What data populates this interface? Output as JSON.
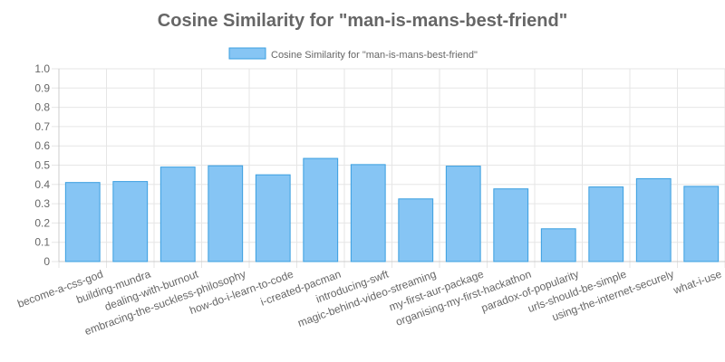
{
  "chart_data": {
    "type": "bar",
    "title": "Cosine Similarity for \"man-is-mans-best-friend\"",
    "xlabel": "",
    "ylabel": "",
    "ylim": [
      0,
      1.0
    ],
    "y_ticks": [
      "0",
      "0.1",
      "0.2",
      "0.3",
      "0.4",
      "0.5",
      "0.6",
      "0.7",
      "0.8",
      "0.9",
      "1.0"
    ],
    "grid": true,
    "legend_position": "top-center",
    "categories": [
      "become-a-css-god",
      "building-mundra",
      "dealing-with-burnout",
      "embracing-the-suckless-philosophy",
      "how-do-i-learn-to-code",
      "i-created-pacman",
      "introducing-swft",
      "magic-behind-video-streaming",
      "my-first-aur-package",
      "organising-my-first-hackathon",
      "paradox-of-popularity",
      "urls-should-be-simple",
      "using-the-internet-securely",
      "what-i-use"
    ],
    "series": [
      {
        "name": "Cosine Similarity for \"man-is-mans-best-friend\"",
        "values": [
          0.41,
          0.415,
          0.49,
          0.497,
          0.45,
          0.535,
          0.503,
          0.325,
          0.495,
          0.377,
          0.17,
          0.387,
          0.43,
          0.39
        ],
        "fill_color": "#86c5f4",
        "border_color": "#3a9fe0"
      }
    ]
  }
}
